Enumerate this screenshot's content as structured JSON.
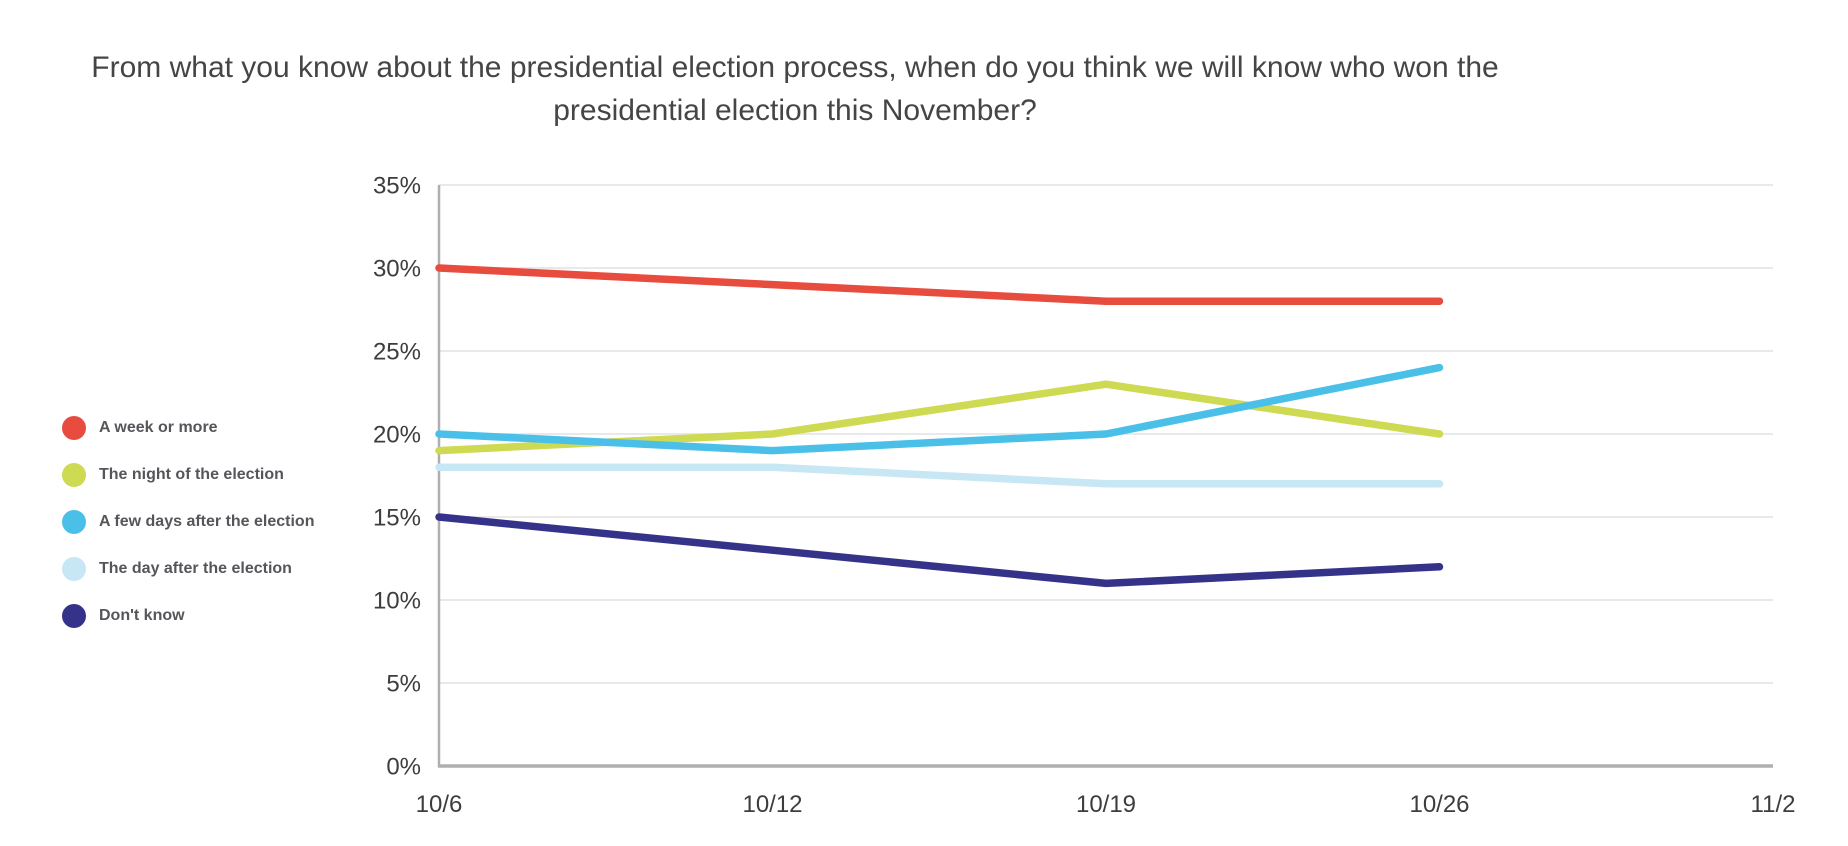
{
  "chart_data": {
    "type": "line",
    "title": "From what you know about the presidential election process, when do you think we will know who won the presidential election this November?",
    "x_categories": [
      "10/6",
      "10/12",
      "10/19",
      "10/26",
      "11/2"
    ],
    "xlabel": "",
    "ylabel": "",
    "y_unit": "%",
    "ylim": [
      0,
      35
    ],
    "y_tick_step": 5,
    "y_tick_labels": [
      "0%",
      "5%",
      "10%",
      "15%",
      "20%",
      "25%",
      "30%",
      "35%"
    ],
    "grid": true,
    "legend_position": "left",
    "series": [
      {
        "name": "A week or more",
        "color": "#E74C3F",
        "values": [
          30,
          29,
          28,
          28
        ]
      },
      {
        "name": "The night of the election",
        "color": "#CDDA52",
        "values": [
          19,
          20,
          23,
          20
        ]
      },
      {
        "name": "A few days after the election",
        "color": "#4AC0E8",
        "values": [
          20,
          19,
          20,
          24
        ]
      },
      {
        "name": "The day after the election",
        "color": "#C8E7F5",
        "values": [
          18,
          18,
          17,
          17
        ]
      },
      {
        "name": "Don't know",
        "color": "#343389",
        "values": [
          15,
          13,
          11,
          12
        ]
      }
    ],
    "note": "Series have data for 10/6 through 10/26 only; 11/2 has no data points"
  },
  "colors": {
    "background": "#FFFFFF",
    "gridline": "#E9E9E9",
    "axis_line": "#AFAFAF",
    "axis_text": "#3D3D3D",
    "title_text": "#454545",
    "legend_text": "#55565A"
  }
}
